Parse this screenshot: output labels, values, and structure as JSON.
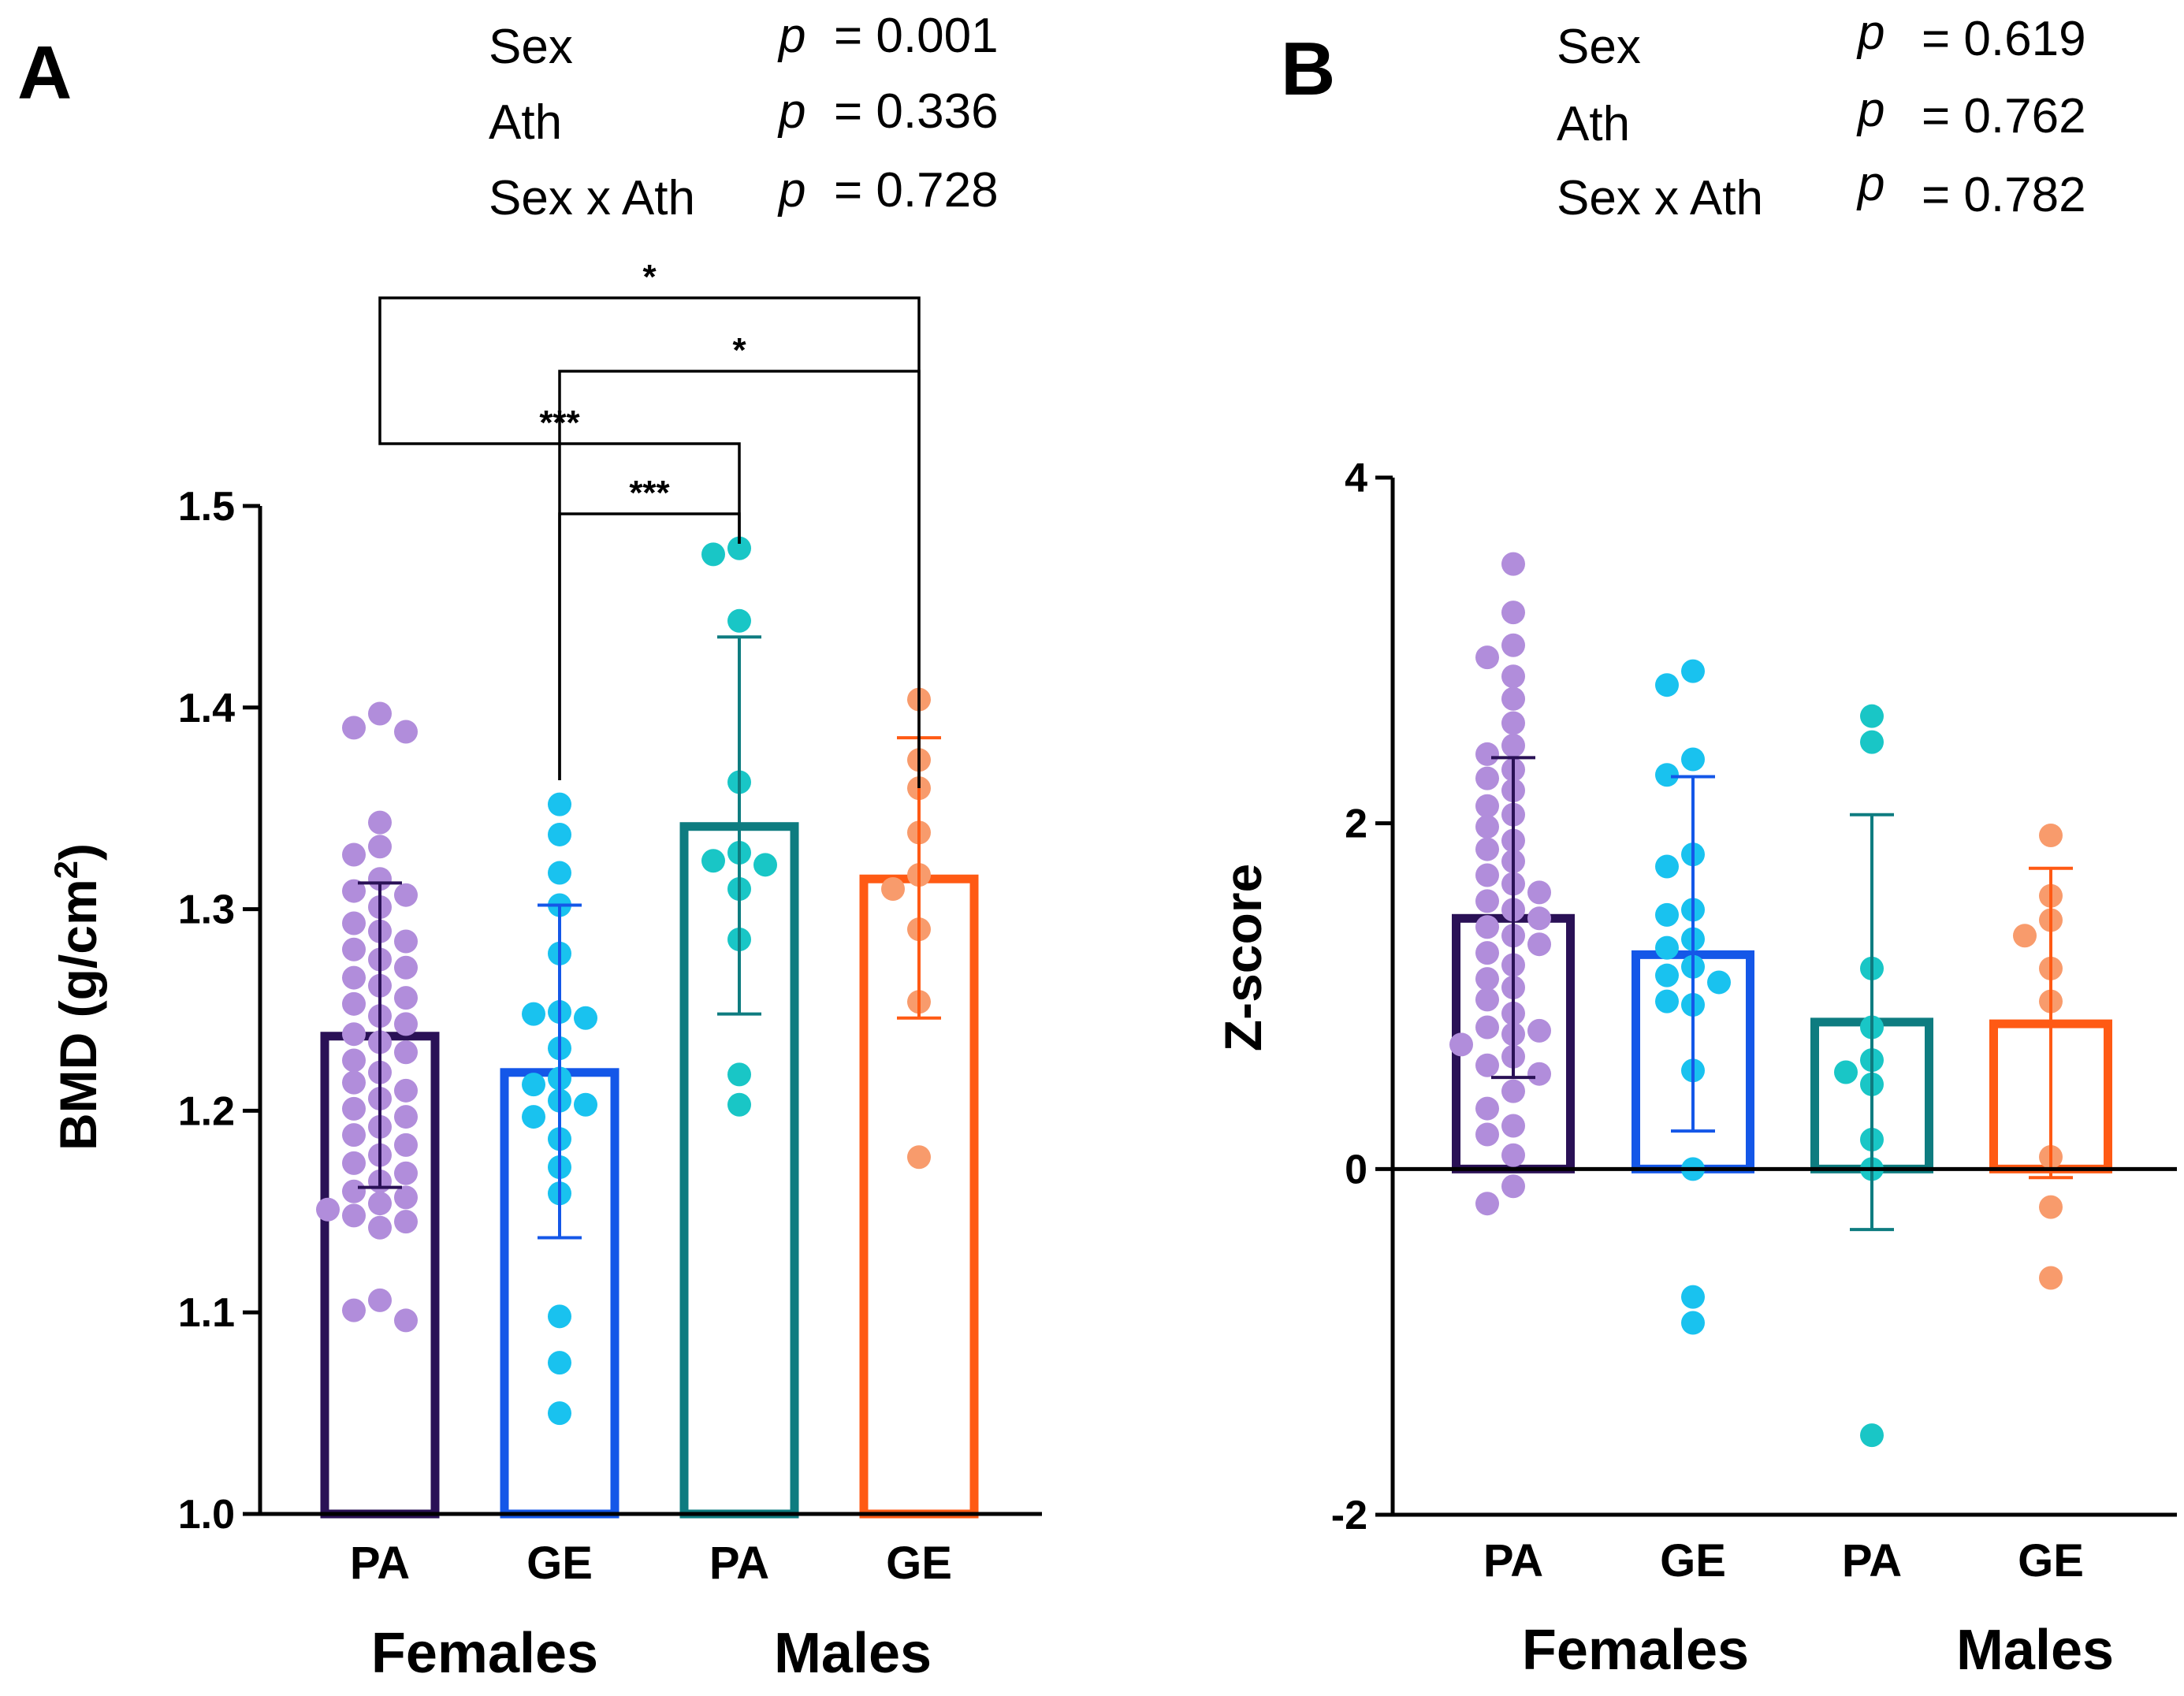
{
  "chart_data": [
    {
      "panel": "A",
      "type": "bar",
      "ylabel": "BMD (g/cm",
      "ylabel_sup": "2",
      "ylabel_close": ")",
      "ylim": [
        1.0,
        1.5
      ],
      "yticks": [
        "1.0",
        "1.1",
        "1.2",
        "1.3",
        "1.4",
        "1.5"
      ],
      "categories": [
        "PA",
        "GE",
        "PA",
        "GE"
      ],
      "groups": [
        "Females",
        "Males"
      ],
      "colors": [
        "#2a1156",
        "#1457e8",
        "#0e7c80",
        "#ff5a14"
      ],
      "point_colors": [
        "#b18ddb",
        "#19c2ef",
        "#19c6c6",
        "#f89b6c"
      ],
      "bars": [
        {
          "mean": 1.237,
          "sd_low": 1.162,
          "sd_high": 1.313
        },
        {
          "mean": 1.219,
          "sd_low": 1.137,
          "sd_high": 1.302
        },
        {
          "mean": 1.341,
          "sd_low": 1.248,
          "sd_high": 1.435
        },
        {
          "mean": 1.315,
          "sd_low": 1.246,
          "sd_high": 1.385
        }
      ],
      "points": [
        [
          1.397,
          1.39,
          1.388,
          1.343,
          1.331,
          1.327,
          1.315,
          1.309,
          1.307,
          1.301,
          1.293,
          1.289,
          1.284,
          1.28,
          1.275,
          1.271,
          1.266,
          1.262,
          1.256,
          1.253,
          1.247,
          1.243,
          1.238,
          1.234,
          1.229,
          1.225,
          1.219,
          1.214,
          1.21,
          1.206,
          1.201,
          1.197,
          1.192,
          1.188,
          1.183,
          1.178,
          1.174,
          1.169,
          1.165,
          1.16,
          1.157,
          1.154,
          1.151,
          1.148,
          1.145,
          1.142,
          1.106,
          1.101,
          1.096
        ],
        [
          1.352,
          1.337,
          1.318,
          1.302,
          1.278,
          1.249,
          1.248,
          1.246,
          1.231,
          1.216,
          1.213,
          1.205,
          1.203,
          1.197,
          1.186,
          1.172,
          1.159,
          1.098,
          1.075,
          1.05
        ],
        [
          1.479,
          1.476,
          1.443,
          1.363,
          1.328,
          1.324,
          1.322,
          1.31,
          1.285,
          1.218,
          1.203
        ],
        [
          1.404,
          1.374,
          1.36,
          1.338,
          1.317,
          1.31,
          1.29,
          1.254,
          1.177
        ]
      ],
      "significance": [
        {
          "from": 0,
          "to": 3,
          "label": "*"
        },
        {
          "from": 1,
          "to": 3,
          "label": "*"
        },
        {
          "from": 0,
          "to": 2,
          "label": "***"
        },
        {
          "from": 1,
          "to": 2,
          "label": "***"
        }
      ],
      "stats": [
        {
          "term": "Sex",
          "p_label": "p",
          "value": "= 0.001"
        },
        {
          "term": "Ath",
          "p_label": "p",
          "value": "= 0.336"
        },
        {
          "term": "Sex x Ath",
          "p_label": "p",
          "value": "= 0.728"
        }
      ]
    },
    {
      "panel": "B",
      "type": "bar",
      "ylabel": "Z-score",
      "ylim": [
        -2,
        4
      ],
      "yticks": [
        "-2",
        "0",
        "2",
        "4"
      ],
      "categories": [
        "PA",
        "GE",
        "PA",
        "GE"
      ],
      "groups": [
        "Females",
        "Males"
      ],
      "colors": [
        "#2a1156",
        "#1457e8",
        "#0e7c80",
        "#ff5a14"
      ],
      "point_colors": [
        "#b18ddb",
        "#19c2ef",
        "#19c6c6",
        "#f89b6c"
      ],
      "bars": [
        {
          "mean": 1.45,
          "sd_low": 0.53,
          "sd_high": 2.38
        },
        {
          "mean": 1.24,
          "sd_low": 0.22,
          "sd_high": 2.27
        },
        {
          "mean": 0.85,
          "sd_low": -0.35,
          "sd_high": 2.05
        },
        {
          "mean": 0.84,
          "sd_low": -0.05,
          "sd_high": 1.74
        }
      ],
      "points": [
        [
          3.5,
          3.22,
          3.03,
          2.96,
          2.85,
          2.72,
          2.58,
          2.45,
          2.4,
          2.31,
          2.26,
          2.19,
          2.1,
          2.05,
          1.98,
          1.9,
          1.85,
          1.78,
          1.7,
          1.65,
          1.6,
          1.55,
          1.5,
          1.45,
          1.4,
          1.35,
          1.3,
          1.25,
          1.18,
          1.1,
          1.05,
          0.98,
          0.9,
          0.82,
          0.8,
          0.78,
          0.72,
          0.65,
          0.6,
          0.55,
          0.45,
          0.35,
          0.25,
          0.2,
          0.08,
          -0.1,
          -0.2
        ],
        [
          2.88,
          2.8,
          2.37,
          2.28,
          1.82,
          1.75,
          1.5,
          1.47,
          1.33,
          1.28,
          1.17,
          1.12,
          1.08,
          0.95,
          0.97,
          0.57,
          0.0,
          -0.74,
          -0.89
        ],
        [
          2.62,
          2.47,
          1.16,
          0.82,
          0.63,
          0.56,
          0.49,
          0.17,
          0.0,
          -1.54
        ],
        [
          1.93,
          1.58,
          1.44,
          1.35,
          1.16,
          0.97,
          0.07,
          -0.22,
          -0.63
        ]
      ],
      "stats": [
        {
          "term": "Sex",
          "p_label": "p",
          "value": "= 0.619"
        },
        {
          "term": "Ath",
          "p_label": "p",
          "value": "= 0.762"
        },
        {
          "term": "Sex x Ath",
          "p_label": "p",
          "value": "= 0.782"
        }
      ]
    }
  ]
}
